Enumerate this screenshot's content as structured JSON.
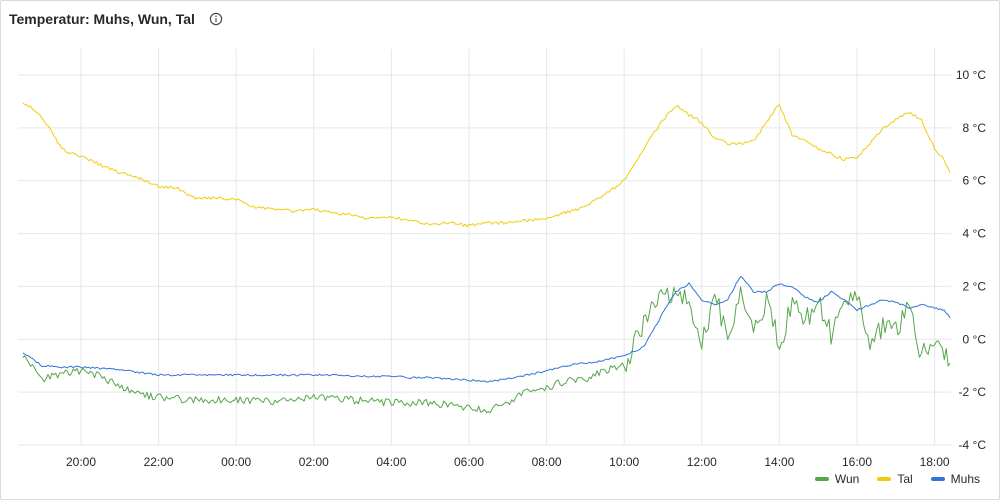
{
  "panel": {
    "title": "Temperatur: Muhs, Wun, Tal",
    "info_icon": "info-circle-icon"
  },
  "chart_data": {
    "type": "line",
    "title": "Temperatur: Muhs, Wun, Tal",
    "x_ticks": [
      "20:00",
      "22:00",
      "00:00",
      "02:00",
      "04:00",
      "06:00",
      "08:00",
      "10:00",
      "12:00",
      "14:00",
      "16:00",
      "18:00"
    ],
    "y_ticks": [
      "10 °C",
      "8 °C",
      "6 °C",
      "4 °C",
      "2 °C",
      "0 °C",
      "-2 °C",
      "-4 °C"
    ],
    "ylim": [
      -4,
      10
    ],
    "unit": "°C",
    "grid": true,
    "legend_position": "bottom-right",
    "series": [
      {
        "name": "Wun",
        "color": "#56a64b",
        "x": [
          "18:30",
          "19:00",
          "19:30",
          "20:00",
          "20:30",
          "21:00",
          "21:30",
          "22:00",
          "22:30",
          "23:00",
          "23:30",
          "00:00",
          "00:30",
          "01:00",
          "01:30",
          "02:00",
          "02:30",
          "03:00",
          "03:30",
          "04:00",
          "04:30",
          "05:00",
          "05:30",
          "06:00",
          "06:30",
          "07:00",
          "07:30",
          "08:00",
          "08:30",
          "09:00",
          "09:30",
          "10:00",
          "10:30",
          "11:00",
          "11:20",
          "11:40",
          "12:00",
          "12:20",
          "12:40",
          "13:00",
          "13:20",
          "13:40",
          "14:00",
          "14:20",
          "14:40",
          "15:00",
          "15:20",
          "15:40",
          "16:00",
          "16:20",
          "16:40",
          "17:00",
          "17:20",
          "17:40",
          "18:00",
          "18:15",
          "18:24"
        ],
        "values": [
          -0.6,
          -1.5,
          -1.3,
          -1.2,
          -1.4,
          -1.8,
          -2.1,
          -2.2,
          -2.25,
          -2.3,
          -2.3,
          -2.3,
          -2.3,
          -2.35,
          -2.3,
          -2.2,
          -2.25,
          -2.3,
          -2.35,
          -2.4,
          -2.4,
          -2.4,
          -2.5,
          -2.6,
          -2.7,
          -2.4,
          -2.0,
          -1.8,
          -1.6,
          -1.5,
          -1.2,
          -1.0,
          0.5,
          2.0,
          1.6,
          1.4,
          -0.2,
          1.5,
          0.3,
          1.8,
          0.2,
          1.5,
          -0.3,
          1.6,
          0.8,
          1.4,
          0.2,
          1.3,
          1.8,
          -0.6,
          0.6,
          0.3,
          1.1,
          -0.5,
          -0.4,
          -0.5,
          -0.9
        ]
      },
      {
        "name": "Tal",
        "color": "#f2cc0c",
        "x": [
          "18:30",
          "19:00",
          "19:30",
          "20:00",
          "20:30",
          "21:00",
          "21:30",
          "22:00",
          "22:30",
          "23:00",
          "23:30",
          "00:00",
          "00:30",
          "01:00",
          "01:30",
          "02:00",
          "02:30",
          "03:00",
          "03:30",
          "04:00",
          "04:30",
          "05:00",
          "05:30",
          "06:00",
          "06:30",
          "07:00",
          "07:30",
          "08:00",
          "08:30",
          "09:00",
          "09:30",
          "10:00",
          "10:30",
          "11:00",
          "11:20",
          "11:40",
          "12:00",
          "12:20",
          "12:40",
          "13:00",
          "13:20",
          "13:40",
          "14:00",
          "14:20",
          "14:40",
          "15:00",
          "15:20",
          "15:40",
          "16:00",
          "16:20",
          "16:40",
          "17:00",
          "17:20",
          "17:40",
          "18:00",
          "18:15",
          "18:24"
        ],
        "values": [
          9.0,
          8.4,
          7.2,
          6.9,
          6.6,
          6.3,
          6.1,
          5.8,
          5.7,
          5.3,
          5.35,
          5.3,
          5.0,
          4.9,
          4.85,
          4.9,
          4.8,
          4.7,
          4.55,
          4.6,
          4.5,
          4.35,
          4.4,
          4.3,
          4.4,
          4.4,
          4.5,
          4.6,
          4.8,
          5.0,
          5.5,
          6.0,
          7.2,
          8.3,
          8.85,
          8.5,
          8.2,
          7.6,
          7.4,
          7.4,
          7.5,
          8.2,
          8.9,
          7.7,
          7.5,
          7.2,
          7.0,
          6.8,
          6.9,
          7.4,
          8.0,
          8.3,
          8.6,
          8.3,
          7.2,
          6.8,
          6.3
        ]
      },
      {
        "name": "Muhs",
        "color": "#3274d9",
        "x": [
          "18:30",
          "19:00",
          "19:30",
          "20:00",
          "20:30",
          "21:00",
          "21:30",
          "22:00",
          "22:30",
          "23:00",
          "23:30",
          "00:00",
          "00:30",
          "01:00",
          "01:30",
          "02:00",
          "02:30",
          "03:00",
          "03:30",
          "04:00",
          "04:30",
          "05:00",
          "05:30",
          "06:00",
          "06:30",
          "07:00",
          "07:30",
          "08:00",
          "08:30",
          "09:00",
          "09:30",
          "10:00",
          "10:30",
          "11:00",
          "11:20",
          "11:40",
          "12:00",
          "12:20",
          "12:40",
          "13:00",
          "13:20",
          "13:40",
          "14:00",
          "14:20",
          "14:40",
          "15:00",
          "15:20",
          "15:40",
          "16:00",
          "16:20",
          "16:40",
          "17:00",
          "17:20",
          "17:40",
          "18:00",
          "18:15",
          "18:24"
        ],
        "values": [
          -0.5,
          -1.0,
          -1.05,
          -1.05,
          -1.1,
          -1.15,
          -1.25,
          -1.35,
          -1.35,
          -1.35,
          -1.35,
          -1.35,
          -1.35,
          -1.35,
          -1.35,
          -1.35,
          -1.35,
          -1.4,
          -1.4,
          -1.4,
          -1.45,
          -1.45,
          -1.5,
          -1.55,
          -1.6,
          -1.5,
          -1.35,
          -1.2,
          -1.0,
          -0.9,
          -0.8,
          -0.6,
          -0.3,
          1.0,
          1.8,
          2.1,
          1.5,
          1.3,
          1.5,
          2.4,
          1.8,
          1.8,
          2.1,
          2.0,
          1.6,
          1.4,
          1.8,
          1.5,
          1.1,
          1.3,
          1.5,
          1.4,
          1.2,
          1.3,
          1.2,
          1.1,
          0.8
        ]
      }
    ]
  }
}
